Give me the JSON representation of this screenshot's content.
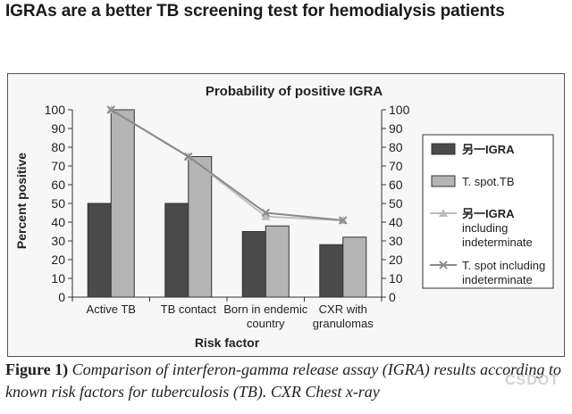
{
  "headline": "IGRAs are a better TB screening test for hemodialysis patients",
  "caption": {
    "label": "Figure 1)",
    "text": "Comparison of interferon-gamma release assay (IGRA) results according to known risk factors for tuberculosis (TB). CXR Chest x-ray"
  },
  "watermark": "CSDOT",
  "colors": {
    "bar_series1": "#4a4a4a",
    "bar_series2": "#b4b4b4",
    "line_series1": "#bdbdbd",
    "line_series2": "#8a8a8a"
  },
  "chart_data": {
    "type": "bar",
    "title": "Probability of positive IGRA",
    "xlabel": "Risk factor",
    "ylabel": "Percent positive",
    "ylim": [
      0,
      100
    ],
    "yticks": [
      0,
      10,
      20,
      30,
      40,
      50,
      60,
      70,
      80,
      90,
      100
    ],
    "secondary_yaxis": true,
    "categories": [
      [
        "Active TB"
      ],
      [
        "TB contact"
      ],
      [
        "Born in endemic",
        "country"
      ],
      [
        "CXR with",
        "granulomas"
      ]
    ],
    "series": [
      {
        "name": "另一IGRA",
        "kind": "bar",
        "values": [
          50,
          50,
          35,
          28
        ]
      },
      {
        "name": "T. spot.TB",
        "kind": "bar",
        "values": [
          100,
          75,
          38,
          32
        ]
      },
      {
        "name": "另一IGRA including indeterminate",
        "legend_lines": [
          "另一IGRA",
          "including",
          "indeterminate"
        ],
        "kind": "line",
        "marker": "triangle",
        "values": [
          100,
          75,
          43,
          41
        ]
      },
      {
        "name": "T. spot including indeterminate",
        "legend_lines": [
          "T. spot including",
          "indeterminate"
        ],
        "kind": "line",
        "marker": "x",
        "values": [
          100,
          75,
          45,
          41
        ]
      }
    ],
    "legend_position": "right",
    "grid": false
  }
}
